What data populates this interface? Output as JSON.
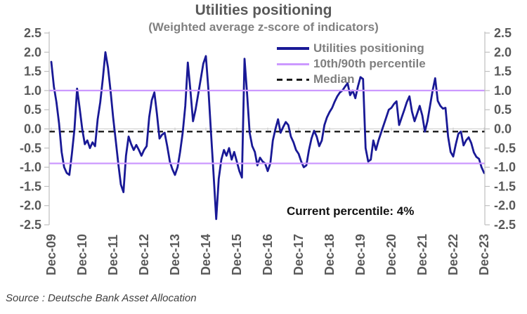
{
  "source": "Source : Deutsche Bank Asset Allocation",
  "legend": [
    {
      "label": "Utilities positioning",
      "color": "#191996",
      "style": "solid"
    },
    {
      "label": "10th/90th percentile",
      "color": "#cc99ff",
      "style": "solid"
    },
    {
      "label": "Median",
      "color": "#1a1a1a",
      "style": "dashed"
    }
  ],
  "chart_data": {
    "type": "line",
    "title": "Utilities positioning",
    "subtitle": "(Weighted average z-score of indicators)",
    "annotation": "Current percentile: 4%",
    "current_percentile": "4%",
    "ylim": [
      -2.5,
      2.5
    ],
    "y_tick_step": 0.5,
    "grid": false,
    "zero_axis_color": "#c9c9c9",
    "axis_color": "#bfbfbf",
    "label_color": "#595959",
    "legend_position": "top-right-inside",
    "x_tick_labels": [
      "Dec-09",
      "Dec-10",
      "Dec-11",
      "Dec-12",
      "Dec-13",
      "Dec-14",
      "Dec-15",
      "Dec-16",
      "Dec-17",
      "Dec-18",
      "Dec-19",
      "Dec-20",
      "Dec-21",
      "Dec-22",
      "Dec-23"
    ],
    "x_frequency": "monthly",
    "x_range": [
      "Dec-09",
      "Dec-23"
    ],
    "series": [
      {
        "name": "Utilities positioning",
        "type": "line",
        "color": "#191996",
        "width": 2.8,
        "values": [
          1.75,
          1.1,
          0.7,
          0.15,
          -0.6,
          -1.0,
          -1.15,
          -1.2,
          -0.65,
          0.0,
          1.05,
          0.55,
          0.0,
          -0.4,
          -0.3,
          -0.5,
          -0.35,
          -0.45,
          0.25,
          0.7,
          1.3,
          2.0,
          1.6,
          1.0,
          0.3,
          -0.3,
          -0.9,
          -1.45,
          -1.65,
          -0.7,
          -0.2,
          -0.4,
          -0.55,
          -0.42,
          -0.55,
          -0.7,
          -0.55,
          -0.45,
          0.3,
          0.75,
          0.95,
          0.4,
          -0.25,
          -0.15,
          -0.1,
          -0.45,
          -0.85,
          -1.05,
          -1.2,
          -1.0,
          -0.6,
          -0.1,
          0.6,
          1.73,
          1.0,
          0.2,
          0.5,
          0.9,
          1.3,
          1.7,
          1.9,
          1.0,
          -0.1,
          -1.2,
          -2.35,
          -1.3,
          -0.8,
          -0.55,
          -0.7,
          -0.5,
          -0.8,
          -0.6,
          -0.85,
          -1.1,
          -1.27,
          1.83,
          0.9,
          -0.1,
          -0.45,
          -0.6,
          -0.95,
          -0.75,
          -0.85,
          -0.9,
          -1.1,
          -0.9,
          -0.3,
          0.0,
          0.25,
          -0.1,
          0.05,
          0.18,
          0.1,
          -0.2,
          -0.35,
          -0.55,
          -0.65,
          -0.85,
          -1.0,
          -0.95,
          -0.55,
          -0.25,
          -0.05,
          -0.2,
          -0.45,
          -0.3,
          0.1,
          0.3,
          0.44,
          0.55,
          0.71,
          0.85,
          0.95,
          1.0,
          1.1,
          1.19,
          0.88,
          1.0,
          0.8,
          1.1,
          1.35,
          1.3,
          -0.5,
          -0.85,
          -0.8,
          -0.3,
          -0.55,
          -0.3,
          -0.1,
          0.1,
          0.3,
          0.5,
          0.55,
          0.65,
          0.72,
          0.1,
          0.3,
          0.49,
          0.7,
          0.85,
          0.45,
          0.2,
          0.4,
          0.6,
          0.35,
          -0.07,
          0.2,
          0.6,
          1.0,
          1.32,
          0.73,
          0.6,
          0.53,
          0.55,
          -0.2,
          -0.6,
          -0.72,
          -0.4,
          -0.13,
          -0.07,
          -0.43,
          -0.3,
          -0.22,
          -0.37,
          -0.61,
          -0.73,
          -0.78,
          -1.0,
          -1.15
        ]
      },
      {
        "name": "10th/90th percentile",
        "type": "hline",
        "color": "#cc99ff",
        "width": 2.2,
        "values": [
          1.0,
          -0.9
        ]
      },
      {
        "name": "Median",
        "type": "hline",
        "style": "dashed",
        "color": "#1a1a1a",
        "width": 2.4,
        "values": [
          -0.07
        ]
      }
    ]
  }
}
